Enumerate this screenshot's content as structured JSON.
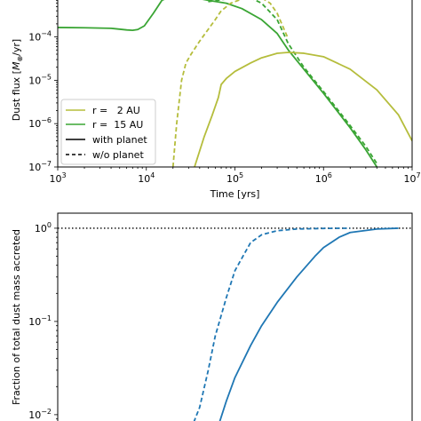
{
  "chart_data": [
    {
      "type": "line",
      "xlabel": "Time [yrs]",
      "ylabel": "Dust flux [",
      "ylabel_unit": "M",
      "ylabel_tail": "/yr]",
      "xscale": "log",
      "yscale": "log",
      "xlim": [
        1000,
        10000000
      ],
      "ylim": [
        1e-07,
        0.0009
      ],
      "x_ticks": [
        {
          "base": "10",
          "exp": "3",
          "value": 1000
        },
        {
          "base": "10",
          "exp": "4",
          "value": 10000
        },
        {
          "base": "10",
          "exp": "5",
          "value": 100000
        },
        {
          "base": "10",
          "exp": "6",
          "value": 1000000
        },
        {
          "base": "10",
          "exp": "7",
          "value": 10000000
        }
      ],
      "y_ticks": [
        {
          "base": "10",
          "exp": "−4",
          "value": 0.0001
        },
        {
          "base": "10",
          "exp": "−5",
          "value": 1e-05
        },
        {
          "base": "10",
          "exp": "−6",
          "value": 1e-06
        },
        {
          "base": "10",
          "exp": "−7",
          "value": 1e-07
        }
      ],
      "legend": {
        "placement": "lower-left",
        "entries": [
          {
            "label": "r =   2 AU",
            "color": "#b5bd3c",
            "style": "solid"
          },
          {
            "label": "r =  15 AU",
            "color": "#3aa534",
            "style": "solid"
          },
          {
            "label": "with planet",
            "color": "#000000",
            "style": "solid"
          },
          {
            "label": "w/o planet",
            "color": "#000000",
            "style": "dashed"
          }
        ]
      },
      "series": [
        {
          "name": "r =  15 AU",
          "style": "solid",
          "color": "#3aa534",
          "x": [
            1000,
            2000,
            4000,
            6000,
            7000,
            8000,
            9500,
            12000,
            15000,
            20000,
            30000,
            50000,
            80000,
            120000,
            200000,
            300000,
            400000,
            600000,
            1000000,
            2000000,
            3000000,
            4000000
          ],
          "y": [
            0.000165,
            0.000163,
            0.000158,
            0.000145,
            0.000142,
            0.000148,
            0.00018,
            0.00035,
            0.0007,
            0.0009,
            0.00085,
            0.0007,
            0.0006,
            0.00045,
            0.00025,
            0.00012,
            5e-05,
            1.8e-05,
            5e-06,
            8e-07,
            2.5e-07,
            1e-07
          ]
        },
        {
          "name": "r =  15 AU",
          "style": "dashed",
          "color": "#3aa534",
          "x": [
            50000,
            80000,
            120000,
            150000,
            200000,
            300000,
            400000,
            600000,
            1000000,
            2000000,
            3000000,
            4000000
          ],
          "y": [
            0.00065,
            0.00075,
            0.0009,
            0.0008,
            0.0006,
            0.00025,
            7e-05,
            2e-05,
            5.5e-06,
            9e-07,
            3e-07,
            1.2e-07
          ]
        },
        {
          "name": "r =   2 AU",
          "style": "solid",
          "color": "#b5bd3c",
          "x": [
            35000,
            45000,
            55000,
            65000,
            70000,
            80000,
            100000,
            150000,
            200000,
            300000,
            400000,
            600000,
            1000000,
            2000000,
            4000000,
            7000000,
            10000000
          ],
          "y": [
            1e-07,
            5e-07,
            1.5e-06,
            4e-06,
            8e-06,
            1.1e-05,
            1.6e-05,
            2.5e-05,
            3.3e-05,
            4.2e-05,
            4.4e-05,
            4.2e-05,
            3.5e-05,
            1.8e-05,
            6e-06,
            1.6e-06,
            4e-07
          ]
        },
        {
          "name": "r =   2 AU",
          "style": "dashed",
          "color": "#b5bd3c",
          "x": [
            20000,
            22000,
            25000,
            28000,
            32000,
            40000,
            50000,
            60000,
            70000,
            90000,
            120000,
            160000,
            200000,
            250000,
            300000,
            400000
          ],
          "y": [
            1e-07,
            1e-06,
            1e-05,
            2.5e-05,
            4e-05,
            8e-05,
            0.00015,
            0.00025,
            0.0004,
            0.0006,
            0.00075,
            0.0009,
            0.0008,
            0.0006,
            0.00035,
            9e-05
          ]
        }
      ]
    },
    {
      "type": "line",
      "xlabel": "",
      "ylabel": "Fraction of total dust mass accreted",
      "xscale": "log",
      "yscale": "log",
      "xlim": [
        1000,
        10000000
      ],
      "ylim": [
        0.0075,
        1.45
      ],
      "y_ticks": [
        {
          "base": "10",
          "exp": "0",
          "value": 1
        },
        {
          "base": "10",
          "exp": "−1",
          "value": 0.1
        },
        {
          "base": "10",
          "exp": "−2",
          "value": 0.01
        }
      ],
      "reference_line": {
        "y": 1,
        "style": "dotted",
        "color": "#000000"
      },
      "series": [
        {
          "style": "dashed",
          "color": "#1f77b4",
          "x": [
            30000,
            40000,
            50000,
            60000,
            80000,
            100000,
            150000,
            200000,
            300000,
            500000,
            1000000,
            2000000
          ],
          "y": [
            0.006,
            0.012,
            0.03,
            0.07,
            0.18,
            0.35,
            0.7,
            0.85,
            0.94,
            0.98,
            0.995,
            1.0
          ]
        },
        {
          "style": "solid",
          "color": "#1f77b4",
          "x": [
            60000,
            80000,
            100000,
            150000,
            200000,
            300000,
            500000,
            800000,
            1000000,
            1500000,
            2000000,
            4000000,
            7000000
          ],
          "y": [
            0.006,
            0.014,
            0.025,
            0.055,
            0.09,
            0.16,
            0.3,
            0.5,
            0.62,
            0.8,
            0.9,
            0.98,
            1.0
          ]
        }
      ]
    }
  ]
}
